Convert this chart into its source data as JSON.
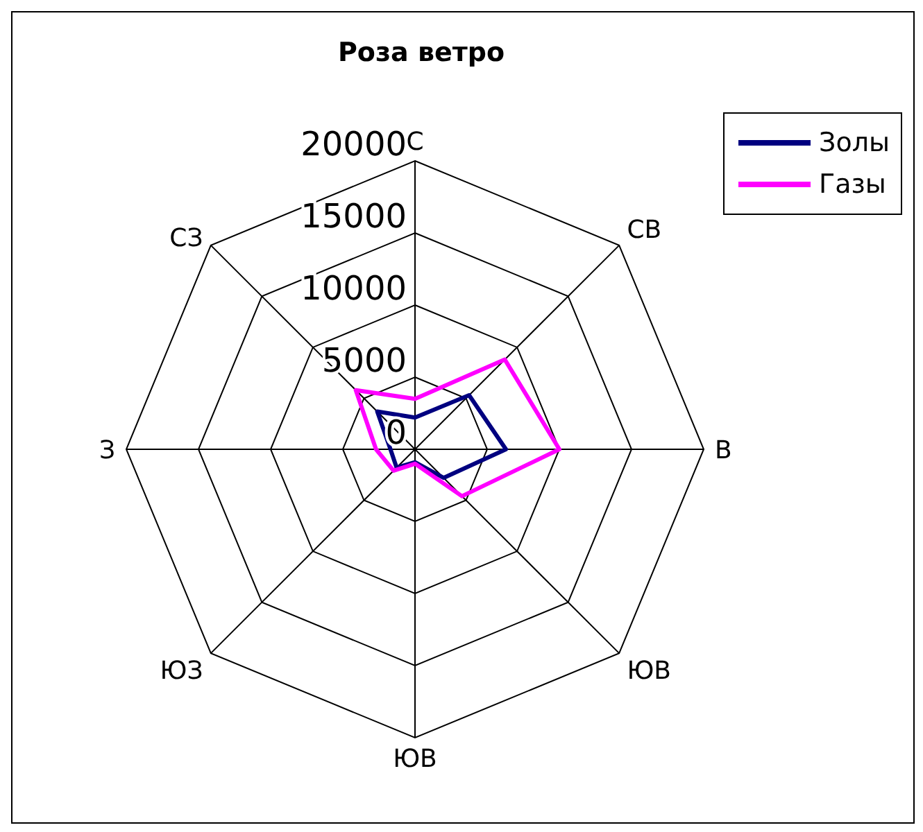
{
  "chart_data": {
    "type": "radar",
    "title": "Роза ветро",
    "categories": [
      "С",
      "СВ",
      "В",
      "ЮВ",
      "ЮВ",
      "ЮЗ",
      "З",
      "СЗ"
    ],
    "series": [
      {
        "name": "Золы",
        "color": "#000080",
        "values": [
          2200,
          5300,
          6300,
          2800,
          900,
          1800,
          1700,
          3700
        ]
      },
      {
        "name": "Газы",
        "color": "#ff00ff",
        "values": [
          3500,
          8800,
          10000,
          4600,
          1000,
          2100,
          2700,
          5800
        ]
      }
    ],
    "ylim": [
      0,
      20000
    ],
    "yticks": [
      0,
      5000,
      10000,
      15000,
      20000
    ],
    "grid": true,
    "legend": "top right"
  }
}
